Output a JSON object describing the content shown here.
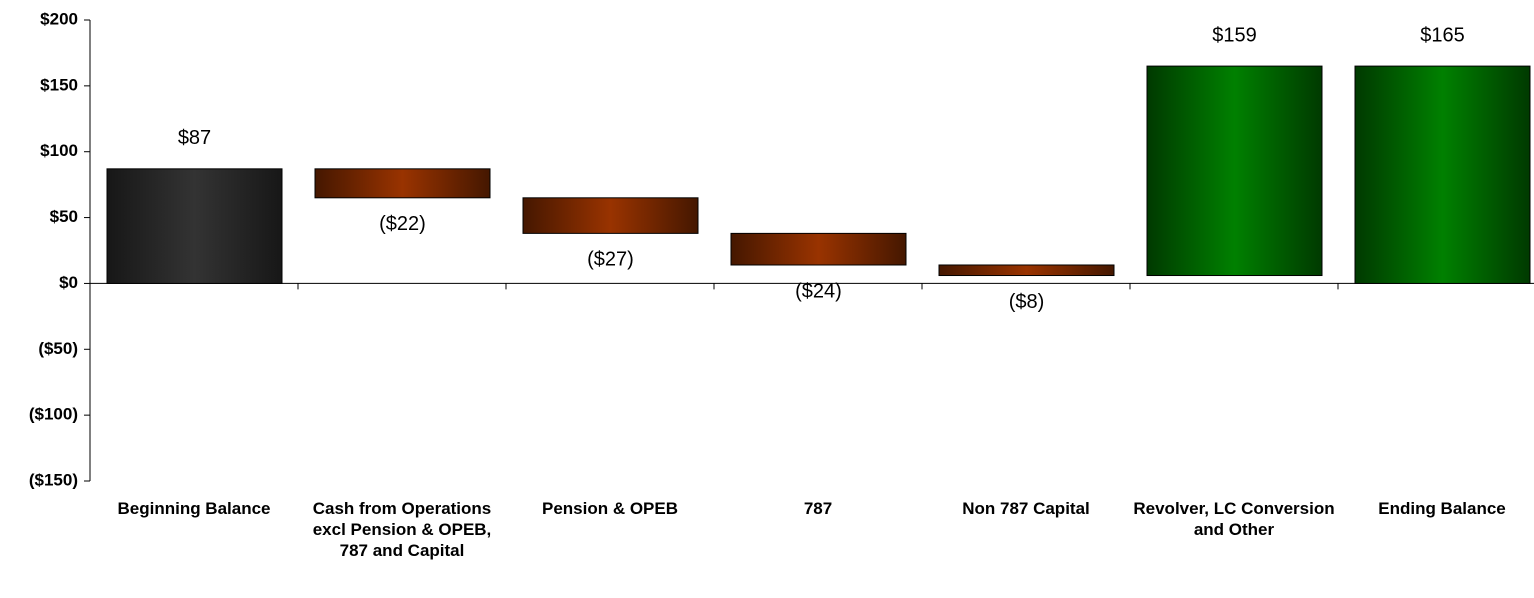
{
  "chart_data": {
    "type": "waterfall",
    "categories": [
      "Beginning Balance",
      "Cash from Operations excl Pension & OPEB, 787 and Capital",
      "Pension & OPEB",
      "787",
      "Non 787 Capital",
      "Revolver, LC Conversion and Other",
      "Ending Balance"
    ],
    "values": [
      87,
      -22,
      -27,
      -24,
      -8,
      159,
      165
    ],
    "value_labels": [
      "$87",
      "($22)",
      "($27)",
      "($24)",
      "($8)",
      "$159",
      "$165"
    ],
    "measures": [
      "absolute",
      "relative",
      "relative",
      "relative",
      "relative",
      "relative",
      "total"
    ],
    "colors": [
      "#333333",
      "#993300",
      "#993300",
      "#993300",
      "#993300",
      "#008000",
      "#008000"
    ],
    "ylim": [
      -150,
      200
    ],
    "yticks": [
      {
        "value": -150,
        "label": "($150)"
      },
      {
        "value": -100,
        "label": "($100)"
      },
      {
        "value": -50,
        "label": "($50)"
      },
      {
        "value": 0,
        "label": "$0"
      },
      {
        "value": 50,
        "label": "$50"
      },
      {
        "value": 100,
        "label": "$100"
      },
      {
        "value": 150,
        "label": "$150"
      },
      {
        "value": 200,
        "label": "$200"
      }
    ]
  }
}
